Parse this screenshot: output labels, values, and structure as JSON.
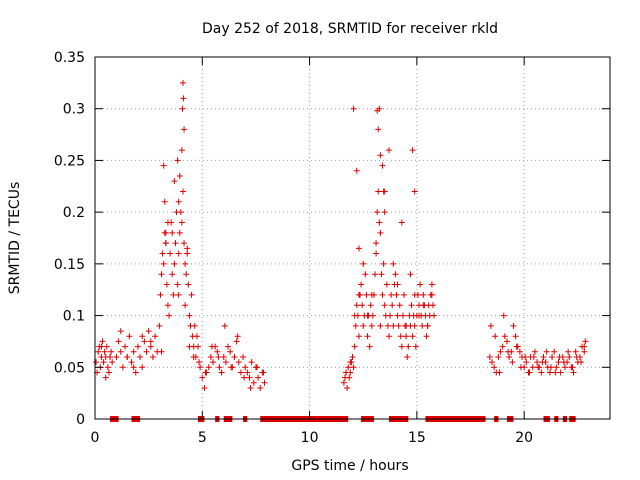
{
  "chart_data": {
    "type": "scatter",
    "title": "Day 252 of 2018, SRMTID for receiver rkld",
    "xlabel": "GPS time / hours",
    "ylabel": "SRMTID / TECUs",
    "xlim": [
      0,
      24
    ],
    "ylim": [
      0,
      0.35
    ],
    "grid": true,
    "marker": "+",
    "color": "#dd0000",
    "x_ticks": [
      0,
      5,
      10,
      15,
      20
    ],
    "x_tick_labels": [
      "0",
      "5",
      "10",
      "15",
      "20"
    ],
    "y_ticks": [
      0,
      0.05,
      0.1,
      0.15,
      0.2,
      0.25,
      0.3,
      0.35
    ],
    "y_tick_labels": [
      "0",
      "0.05",
      "0.1",
      "0.15",
      "0.2",
      "0.25",
      "0.3",
      "0.35"
    ],
    "series": [
      {
        "name": "SRMTID",
        "x": [
          0.05,
          0.1,
          0.15,
          0.2,
          0.25,
          0.3,
          0.35,
          0.4,
          0.45,
          0.5,
          0.55,
          0.6,
          0.65,
          0.7,
          0.75,
          0.8,
          1.0,
          1.1,
          1.2,
          1.3,
          1.4,
          1.5,
          1.6,
          1.7,
          1.8,
          1.9,
          2.0,
          2.1,
          2.2,
          2.3,
          2.4,
          2.5,
          2.6,
          2.7,
          2.8,
          2.9,
          3.0,
          3.05,
          3.1,
          3.15,
          3.2,
          3.25,
          3.3,
          3.35,
          3.4,
          3.45,
          3.5,
          3.55,
          3.6,
          3.65,
          3.7,
          3.75,
          3.8,
          3.85,
          3.9,
          3.95,
          4.0,
          4.05,
          4.1,
          4.15,
          4.2,
          4.25,
          4.3,
          4.35,
          4.4,
          4.45,
          4.5,
          4.55,
          4.6,
          4.65,
          4.7,
          4.75,
          4.8,
          4.9,
          5.0,
          5.1,
          5.2,
          5.3,
          5.4,
          5.5,
          5.6,
          5.7,
          5.8,
          5.9,
          6.0,
          6.1,
          6.2,
          6.3,
          6.4,
          6.5,
          6.6,
          6.7,
          6.8,
          6.9,
          7.0,
          7.1,
          7.2,
          7.3,
          7.4,
          7.5,
          7.6,
          7.7,
          7.8,
          7.9,
          11.6,
          11.65,
          11.7,
          11.75,
          11.8,
          11.85,
          11.9,
          11.95,
          12.0,
          12.05,
          12.1,
          12.15,
          12.2,
          12.25,
          12.3,
          12.35,
          12.4,
          12.45,
          12.5,
          12.55,
          12.6,
          12.65,
          12.7,
          12.75,
          12.8,
          12.85,
          12.9,
          12.95,
          13.0,
          13.05,
          13.1,
          13.15,
          13.2,
          13.25,
          13.3,
          13.35,
          13.4,
          13.45,
          13.5,
          13.55,
          13.6,
          13.65,
          13.7,
          13.75,
          13.8,
          13.85,
          13.9,
          13.95,
          14.0,
          14.05,
          14.1,
          14.15,
          14.2,
          14.25,
          14.3,
          14.35,
          14.4,
          14.45,
          14.5,
          14.55,
          14.6,
          14.65,
          14.7,
          14.75,
          14.8,
          14.85,
          14.9,
          14.95,
          15.0,
          15.05,
          15.1,
          15.15,
          15.2,
          15.25,
          15.3,
          15.35,
          15.4,
          15.45,
          15.5,
          15.55,
          15.6,
          15.65,
          15.7,
          15.75,
          15.8,
          18.4,
          18.5,
          18.6,
          18.7,
          18.8,
          18.9,
          19.0,
          19.1,
          19.2,
          19.3,
          19.4,
          19.5,
          19.6,
          19.7,
          19.8,
          19.9,
          20.0,
          20.1,
          20.2,
          20.3,
          20.4,
          20.5,
          20.6,
          20.7,
          20.8,
          20.9,
          21.0,
          21.1,
          21.2,
          21.3,
          21.4,
          21.5,
          21.6,
          21.7,
          21.8,
          21.9,
          22.0,
          22.1,
          22.2,
          22.3,
          22.4,
          22.5,
          22.6,
          22.7,
          22.8,
          22.85,
          0.3,
          0.5,
          0.7,
          1.2,
          1.5,
          1.8,
          2.2,
          2.6,
          3.1,
          3.3,
          3.6,
          3.9,
          4.2,
          4.4,
          4.6,
          4.85,
          5.15,
          5.45,
          5.75,
          6.05,
          6.35,
          6.65,
          6.95,
          7.25,
          7.55,
          7.85,
          11.7,
          11.9,
          12.1,
          12.3,
          12.5,
          12.7,
          12.9,
          13.1,
          13.3,
          13.5,
          13.7,
          13.9,
          14.1,
          14.3,
          14.5,
          14.7,
          14.9,
          15.1,
          15.3,
          15.5,
          15.7,
          18.45,
          18.65,
          18.85,
          19.05,
          19.25,
          19.45,
          19.65,
          19.85,
          20.05,
          20.25,
          20.45,
          20.65,
          20.85,
          21.05,
          21.25,
          21.45,
          21.65,
          21.85,
          22.05,
          22.25,
          22.45,
          22.65,
          22.8,
          4.1,
          4.12,
          4.15,
          4.08,
          3.95,
          3.9,
          3.2,
          3.25,
          3.3,
          3.4,
          4.05,
          4.3,
          13.15,
          13.2,
          13.3,
          13.4,
          13.45,
          13.5,
          12.2,
          12.3,
          13.25,
          14.8,
          14.9,
          12.05,
          3.7,
          3.85
        ],
        "y": [
          0.055,
          0.045,
          0.065,
          0.07,
          0.05,
          0.06,
          0.075,
          0.055,
          0.065,
          0.06,
          0.07,
          0.05,
          0.045,
          0.06,
          0.065,
          0.055,
          0.06,
          0.075,
          0.065,
          0.05,
          0.07,
          0.06,
          0.08,
          0.055,
          0.065,
          0.045,
          0.07,
          0.06,
          0.05,
          0.075,
          0.065,
          0.085,
          0.07,
          0.06,
          0.08,
          0.065,
          0.09,
          0.12,
          0.14,
          0.16,
          0.15,
          0.18,
          0.17,
          0.13,
          0.11,
          0.1,
          0.16,
          0.19,
          0.14,
          0.12,
          0.15,
          0.17,
          0.2,
          0.13,
          0.16,
          0.18,
          0.2,
          0.19,
          0.22,
          0.17,
          0.15,
          0.14,
          0.16,
          0.13,
          0.1,
          0.09,
          0.12,
          0.08,
          0.07,
          0.09,
          0.06,
          0.08,
          0.07,
          0.05,
          0.04,
          0.03,
          0.045,
          0.05,
          0.06,
          0.055,
          0.07,
          0.065,
          0.05,
          0.045,
          0.06,
          0.055,
          0.07,
          0.065,
          0.05,
          0.06,
          0.075,
          0.055,
          0.045,
          0.06,
          0.05,
          0.045,
          0.04,
          0.055,
          0.035,
          0.05,
          0.04,
          0.03,
          0.045,
          0.035,
          0.035,
          0.04,
          0.045,
          0.03,
          0.05,
          0.04,
          0.045,
          0.055,
          0.06,
          0.05,
          0.07,
          0.09,
          0.11,
          0.1,
          0.08,
          0.12,
          0.13,
          0.11,
          0.09,
          0.1,
          0.14,
          0.12,
          0.08,
          0.1,
          0.07,
          0.11,
          0.09,
          0.1,
          0.12,
          0.14,
          0.16,
          0.2,
          0.22,
          0.19,
          0.18,
          0.14,
          0.12,
          0.15,
          0.11,
          0.1,
          0.13,
          0.09,
          0.08,
          0.1,
          0.12,
          0.11,
          0.09,
          0.13,
          0.14,
          0.12,
          0.1,
          0.09,
          0.11,
          0.08,
          0.07,
          0.1,
          0.12,
          0.09,
          0.08,
          0.06,
          0.07,
          0.1,
          0.09,
          0.11,
          0.08,
          0.1,
          0.09,
          0.07,
          0.1,
          0.12,
          0.11,
          0.13,
          0.1,
          0.09,
          0.12,
          0.11,
          0.1,
          0.08,
          0.09,
          0.11,
          0.1,
          0.12,
          0.13,
          0.11,
          0.1,
          0.06,
          0.055,
          0.05,
          0.045,
          0.06,
          0.065,
          0.07,
          0.08,
          0.075,
          0.06,
          0.065,
          0.09,
          0.08,
          0.07,
          0.065,
          0.06,
          0.05,
          0.055,
          0.045,
          0.06,
          0.05,
          0.065,
          0.055,
          0.05,
          0.045,
          0.06,
          0.055,
          0.05,
          0.045,
          0.06,
          0.065,
          0.05,
          0.055,
          0.045,
          0.06,
          0.05,
          0.055,
          0.06,
          0.05,
          0.045,
          0.065,
          0.055,
          0.06,
          0.07,
          0.065,
          0.075,
          0.07,
          0.04,
          0.06,
          0.085,
          0.06,
          0.05,
          0.08,
          0.075,
          0.065,
          0.17,
          0.18,
          0.12,
          0.11,
          0.07,
          0.06,
          0.055,
          0.045,
          0.07,
          0.06,
          0.09,
          0.05,
          0.08,
          0.04,
          0.03,
          0.05,
          0.045,
          0.045,
          0.055,
          0.1,
          0.12,
          0.15,
          0.1,
          0.12,
          0.17,
          0.09,
          0.2,
          0.26,
          0.15,
          0.13,
          0.19,
          0.09,
          0.14,
          0.12,
          0.1,
          0.11,
          0.09,
          0.12,
          0.09,
          0.08,
          0.045,
          0.1,
          0.065,
          0.055,
          0.07,
          0.05,
          0.06,
          0.045,
          0.06,
          0.05,
          0.055,
          0.065,
          0.05,
          0.045,
          0.06,
          0.055,
          0.065,
          0.05,
          0.06,
          0.055,
          0.07,
          0.325,
          0.31,
          0.28,
          0.3,
          0.235,
          0.21,
          0.245,
          0.21,
          0.18,
          0.19,
          0.26,
          0.165,
          0.298,
          0.28,
          0.255,
          0.245,
          0.22,
          0.22,
          0.24,
          0.165,
          0.3,
          0.26,
          0.22,
          0.3,
          0.23,
          0.25
        ]
      }
    ],
    "zero_segments": [
      [
        0.7,
        1.1
      ],
      [
        1.7,
        2.1
      ],
      [
        4.8,
        5.1
      ],
      [
        5.6,
        5.8
      ],
      [
        6.0,
        6.4
      ],
      [
        6.9,
        7.1
      ],
      [
        7.7,
        11.8
      ],
      [
        12.4,
        13.0
      ],
      [
        13.7,
        14.6
      ],
      [
        15.4,
        18.2
      ],
      [
        18.6,
        18.8
      ],
      [
        19.2,
        19.5
      ],
      [
        20.9,
        21.2
      ],
      [
        21.4,
        21.6
      ],
      [
        21.8,
        22.0
      ],
      [
        22.1,
        22.4
      ]
    ]
  }
}
